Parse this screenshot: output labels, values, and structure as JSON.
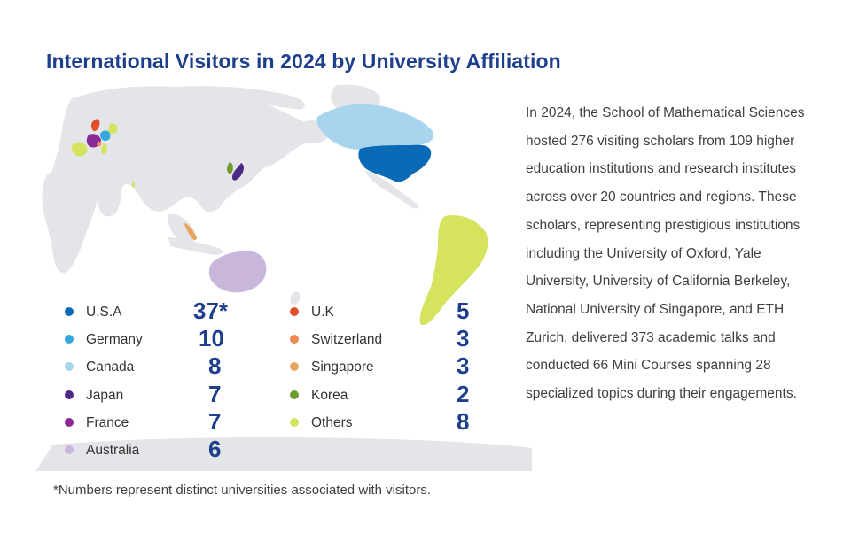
{
  "title": "International Visitors in 2024 by University Affiliation",
  "legend_left": [
    {
      "name": "U.S.A",
      "count": "37*",
      "color": "#0b6ab6"
    },
    {
      "name": "Germany",
      "count": "10",
      "color": "#35a9df"
    },
    {
      "name": "Canada",
      "count": "8",
      "color": "#a8d4ee"
    },
    {
      "name": "Japan",
      "count": "7",
      "color": "#4b2a85"
    },
    {
      "name": "France",
      "count": "7",
      "color": "#8a2a97"
    },
    {
      "name": "Australia",
      "count": "6",
      "color": "#c9b6db"
    }
  ],
  "legend_right": [
    {
      "name": "U.K",
      "count": "5",
      "color": "#e2502b"
    },
    {
      "name": "Switzerland",
      "count": "3",
      "color": "#f08a52"
    },
    {
      "name": "Singapore",
      "count": "3",
      "color": "#e9a560"
    },
    {
      "name": "Korea",
      "count": "2",
      "color": "#6e9a2e"
    },
    {
      "name": "Others",
      "count": "8",
      "color": "#d6e35e"
    }
  ],
  "paragraph": "In 2024, the School of Mathematical Sciences hosted 276 visiting scholars from 109 higher education institutions and research institutes across over 20 countries and regions. These scholars, representing prestigious institutions including the University of Oxford, Yale University, University of California Berkeley, National University of Singapore, and ETH Zurich, delivered 373 academic talks and conducted 66 Mini Courses spanning 28 specialized topics during their engagements.",
  "footnote": "*Numbers represent distinct universities associated with visitors."
}
